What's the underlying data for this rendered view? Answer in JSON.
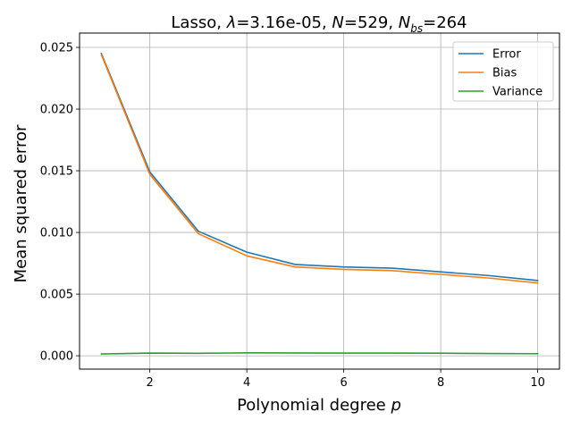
{
  "chart_data": {
    "type": "line",
    "title": {
      "prefix": "Lasso, ",
      "lambda_symbol": "λ",
      "lambda_value": "=3.16e-05, ",
      "n_symbol": "N",
      "n_value": "=529, ",
      "nbs_symbol": "N",
      "nbs_sub": "bs",
      "nbs_value": "=264"
    },
    "xlabel": {
      "text": "Polynomial degree ",
      "var": "p"
    },
    "ylabel": "Mean squared error",
    "xlim": [
      0.55,
      10.45
    ],
    "ylim": [
      -0.00108,
      0.02616
    ],
    "x_ticks": [
      2,
      4,
      6,
      8,
      10
    ],
    "x_tick_labels": [
      "2",
      "4",
      "6",
      "8",
      "10"
    ],
    "y_ticks": [
      0.0,
      0.005,
      0.01,
      0.015,
      0.02,
      0.025
    ],
    "y_tick_labels": [
      "0.000",
      "0.005",
      "0.010",
      "0.015",
      "0.020",
      "0.025"
    ],
    "grid": true,
    "legend_position": "top-right",
    "x": [
      1,
      2,
      3,
      4,
      5,
      6,
      7,
      8,
      9,
      10
    ],
    "series": [
      {
        "name": "Error",
        "color": "#1f77b4",
        "values": [
          0.0245,
          0.0149,
          0.0101,
          0.0084,
          0.0074,
          0.0072,
          0.0071,
          0.0068,
          0.0065,
          0.0061
        ]
      },
      {
        "name": "Bias",
        "color": "#ff7f0e",
        "values": [
          0.0244,
          0.0147,
          0.0099,
          0.0081,
          0.0072,
          0.007,
          0.0069,
          0.0066,
          0.0063,
          0.0059
        ]
      },
      {
        "name": "Variance",
        "color": "#2ca02c",
        "values": [
          0.00015,
          0.00022,
          0.0002,
          0.00024,
          0.00023,
          0.00022,
          0.00022,
          0.00021,
          0.00018,
          0.00017
        ]
      }
    ]
  }
}
